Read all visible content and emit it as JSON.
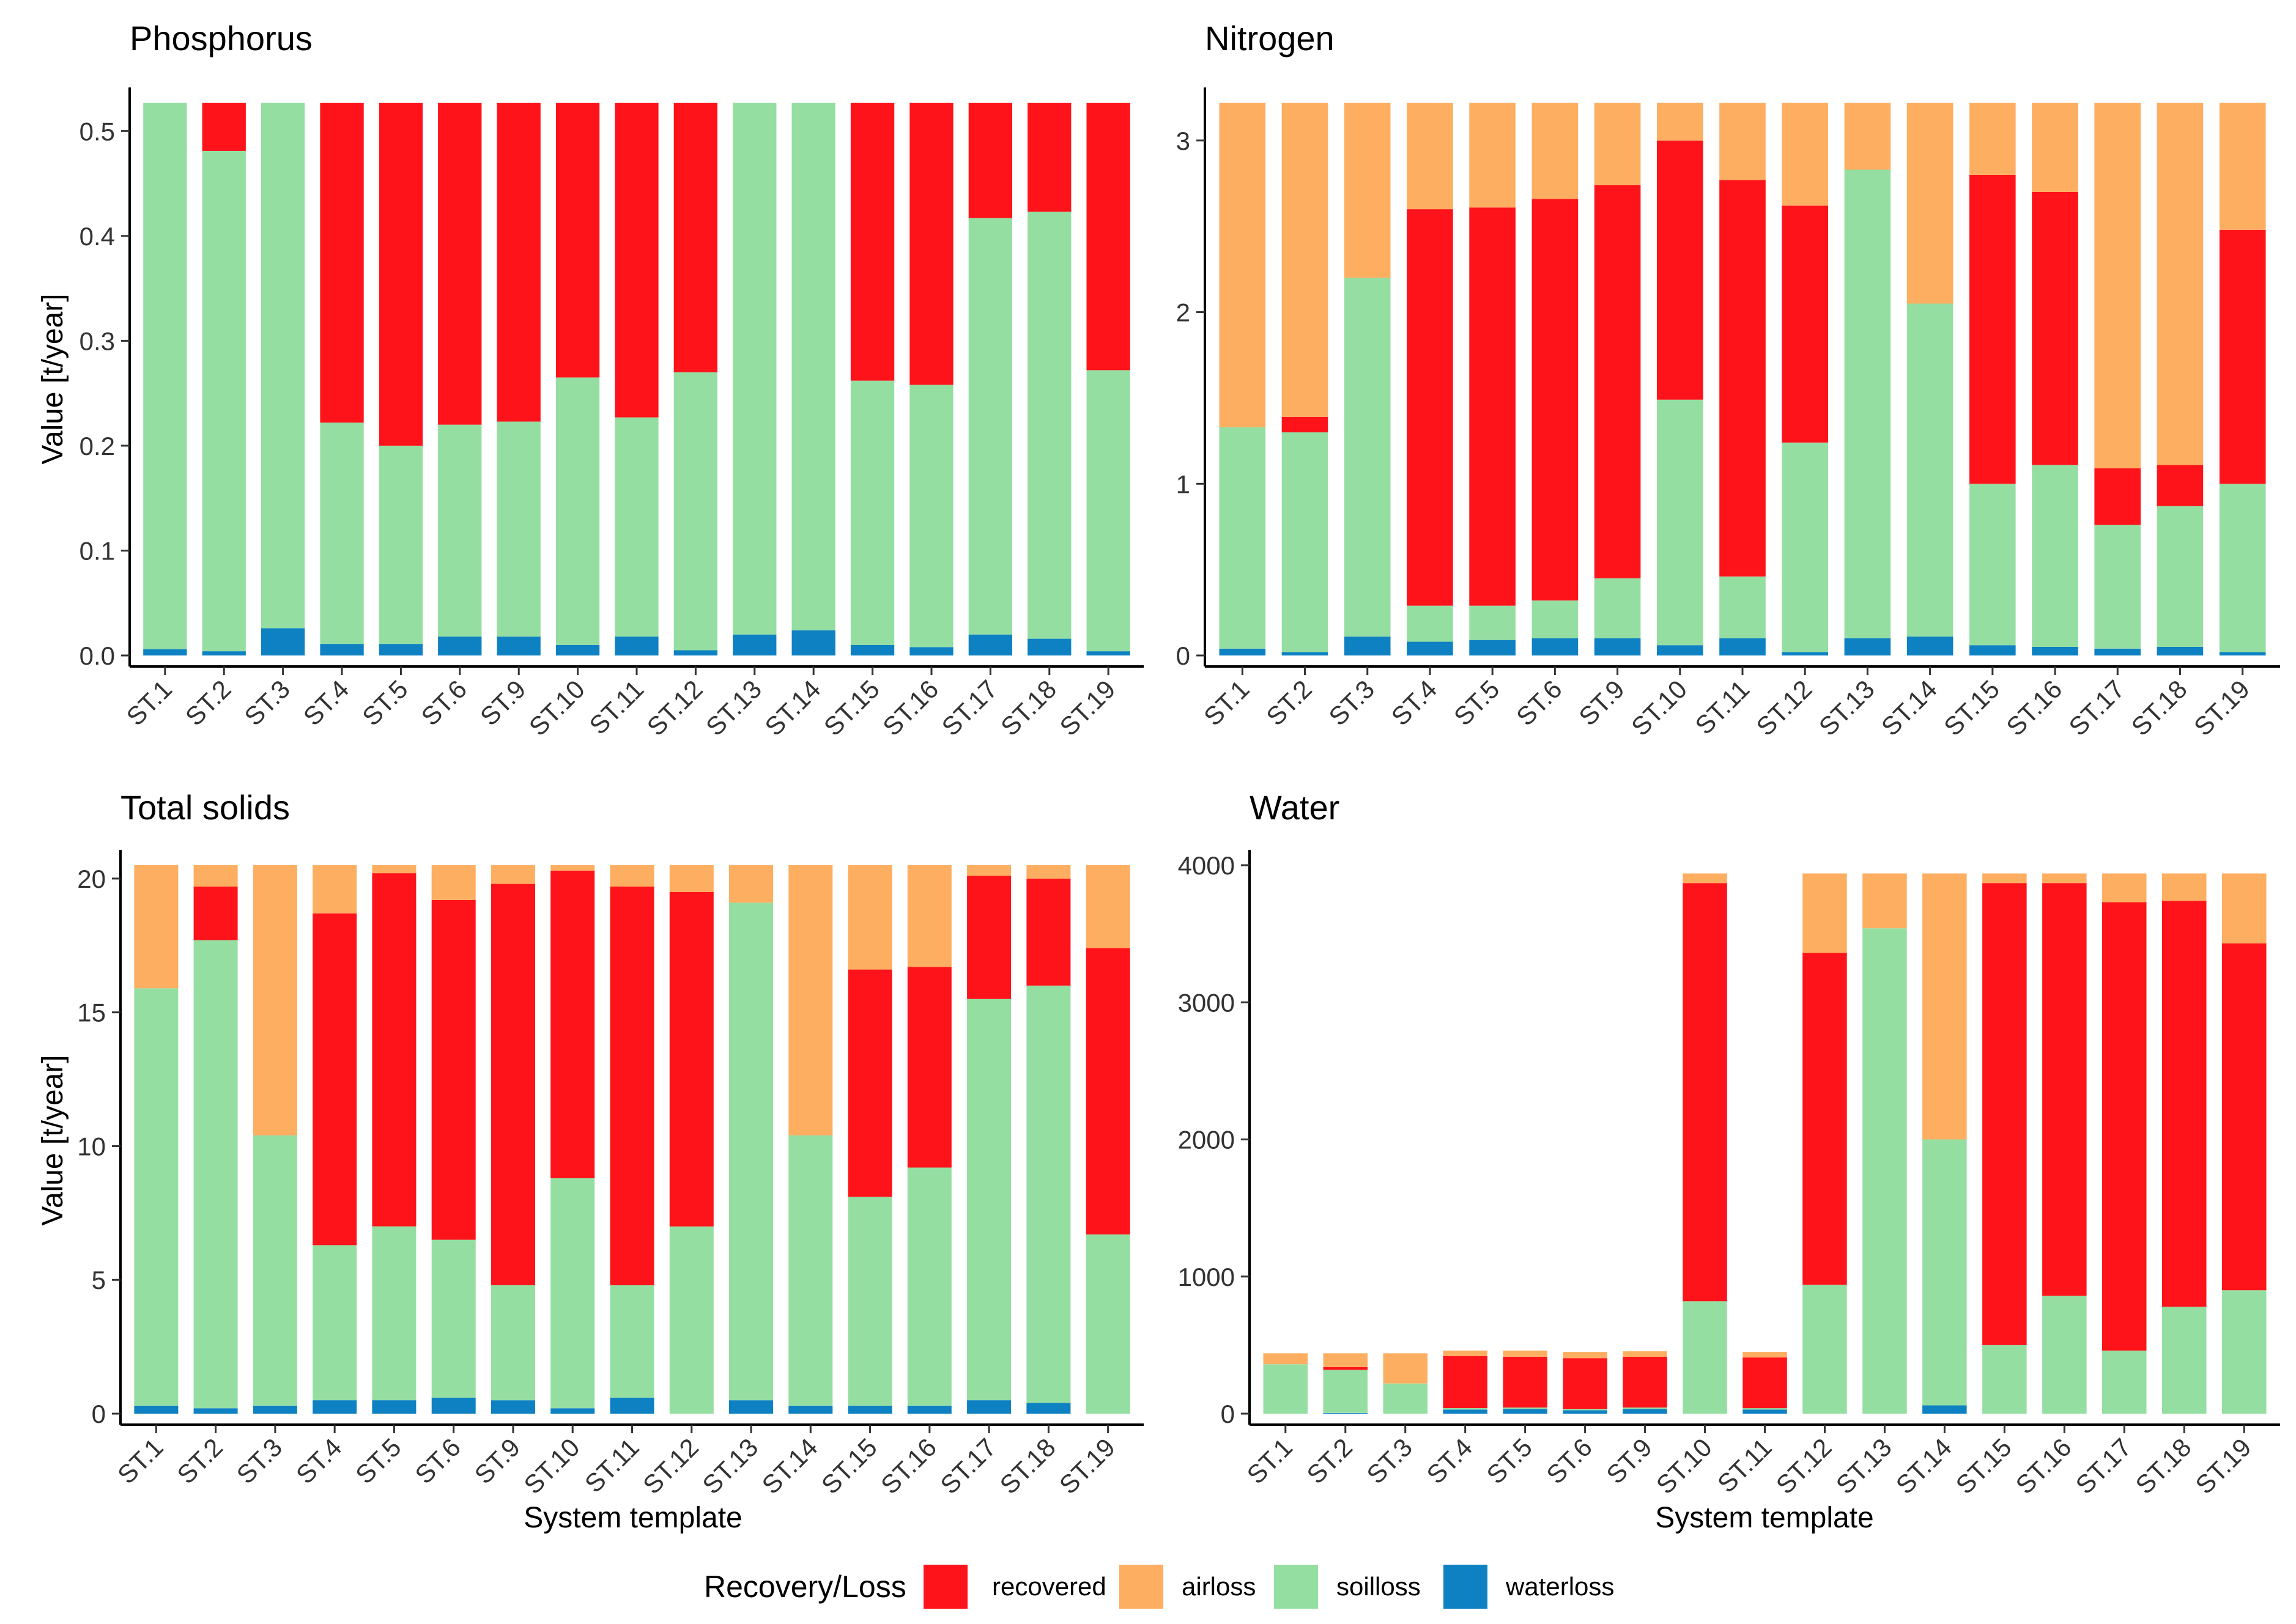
{
  "legend": {
    "title": "Recovery/Loss",
    "entries": [
      {
        "key": "recovered",
        "label": "recovered",
        "color": "#fe131a"
      },
      {
        "key": "airloss",
        "label": "airloss",
        "color": "#fdae61"
      },
      {
        "key": "soilloss",
        "label": "soilloss",
        "color": "#95dea2"
      },
      {
        "key": "waterloss",
        "label": "waterloss",
        "color": "#0e81c2"
      }
    ]
  },
  "chart_data": [
    {
      "type": "bar",
      "stacked": true,
      "title": "Phosphorus",
      "xlabel": "",
      "ylabel": "Value [t/year]",
      "ylim": [
        0,
        0.527
      ],
      "yticks": [
        0.0,
        0.1,
        0.2,
        0.3,
        0.4,
        0.5
      ],
      "ytick_labels": [
        "0.0",
        "0.1",
        "0.2",
        "0.3",
        "0.4",
        "0.5"
      ],
      "categories": [
        "ST.1",
        "ST.2",
        "ST.3",
        "ST.4",
        "ST.5",
        "ST.6",
        "ST.9",
        "ST.10",
        "ST.11",
        "ST.12",
        "ST.13",
        "ST.14",
        "ST.15",
        "ST.16",
        "ST.17",
        "ST.18",
        "ST.19"
      ],
      "series": [
        {
          "name": "waterloss",
          "values": [
            0.006,
            0.004,
            0.026,
            0.011,
            0.011,
            0.018,
            0.018,
            0.01,
            0.018,
            0.005,
            0.02,
            0.024,
            0.01,
            0.008,
            0.02,
            0.016,
            0.004
          ]
        },
        {
          "name": "soilloss",
          "values": [
            0.521,
            0.477,
            0.501,
            0.211,
            0.189,
            0.202,
            0.205,
            0.255,
            0.209,
            0.265,
            0.507,
            0.503,
            0.252,
            0.25,
            0.397,
            0.407,
            0.268
          ]
        },
        {
          "name": "recovered",
          "values": [
            0,
            0.046,
            0,
            0.305,
            0.327,
            0.307,
            0.304,
            0.262,
            0.3,
            0.257,
            0,
            0,
            0.265,
            0.269,
            0.11,
            0.104,
            0.255
          ]
        },
        {
          "name": "airloss",
          "values": [
            0,
            0,
            0,
            0,
            0,
            0,
            0,
            0,
            0,
            0,
            0,
            0,
            0,
            0,
            0,
            0,
            0
          ]
        }
      ]
    },
    {
      "type": "bar",
      "stacked": true,
      "title": "Nitrogen",
      "xlabel": "",
      "ylabel": "",
      "ylim": [
        0,
        3.22
      ],
      "yticks": [
        0,
        1,
        2,
        3
      ],
      "ytick_labels": [
        "0",
        "1",
        "2",
        "3"
      ],
      "categories": [
        "ST.1",
        "ST.2",
        "ST.3",
        "ST.4",
        "ST.5",
        "ST.6",
        "ST.9",
        "ST.10",
        "ST.11",
        "ST.12",
        "ST.13",
        "ST.14",
        "ST.15",
        "ST.16",
        "ST.17",
        "ST.18",
        "ST.19"
      ],
      "series": [
        {
          "name": "waterloss",
          "values": [
            0.04,
            0.02,
            0.11,
            0.08,
            0.09,
            0.1,
            0.1,
            0.06,
            0.1,
            0.02,
            0.1,
            0.11,
            0.06,
            0.05,
            0.04,
            0.05,
            0.02
          ]
        },
        {
          "name": "soilloss",
          "values": [
            1.29,
            1.28,
            2.09,
            0.21,
            0.2,
            0.22,
            0.35,
            1.43,
            0.36,
            1.22,
            2.73,
            1.94,
            0.94,
            1.06,
            0.72,
            0.82,
            0.98
          ]
        },
        {
          "name": "recovered",
          "values": [
            0,
            0.09,
            0,
            2.31,
            2.32,
            2.34,
            2.29,
            1.51,
            2.31,
            1.38,
            0,
            0,
            1.8,
            1.59,
            0.33,
            0.24,
            1.48
          ]
        },
        {
          "name": "airloss",
          "values": [
            1.89,
            1.83,
            1.02,
            0.62,
            0.61,
            0.56,
            0.48,
            0.22,
            0.45,
            0.6,
            0.39,
            1.17,
            0.42,
            0.52,
            2.13,
            2.11,
            0.74
          ]
        }
      ]
    },
    {
      "type": "bar",
      "stacked": true,
      "title": "Total solids",
      "xlabel": "System template",
      "ylabel": "Value [t/year]",
      "ylim": [
        0,
        20.5
      ],
      "yticks": [
        0,
        5,
        10,
        15,
        20
      ],
      "ytick_labels": [
        "0",
        "5",
        "10",
        "15",
        "20"
      ],
      "categories": [
        "ST.1",
        "ST.2",
        "ST.3",
        "ST.4",
        "ST.5",
        "ST.6",
        "ST.9",
        "ST.10",
        "ST.11",
        "ST.12",
        "ST.13",
        "ST.14",
        "ST.15",
        "ST.16",
        "ST.17",
        "ST.18",
        "ST.19"
      ],
      "series": [
        {
          "name": "waterloss",
          "values": [
            0.3,
            0.2,
            0.3,
            0.5,
            0.5,
            0.6,
            0.5,
            0.2,
            0.6,
            0,
            0.5,
            0.3,
            0.3,
            0.3,
            0.5,
            0.4,
            0
          ]
        },
        {
          "name": "soilloss",
          "values": [
            15.6,
            17.5,
            10.1,
            5.8,
            6.5,
            5.9,
            4.3,
            8.6,
            4.2,
            7.0,
            18.6,
            10.1,
            7.8,
            8.9,
            15.0,
            15.6,
            6.7
          ]
        },
        {
          "name": "recovered",
          "values": [
            0,
            2.0,
            0,
            12.4,
            13.2,
            12.7,
            15.0,
            11.5,
            14.9,
            12.5,
            0,
            0,
            8.5,
            7.5,
            4.6,
            4.0,
            10.7
          ]
        },
        {
          "name": "airloss",
          "values": [
            4.6,
            0.8,
            10.1,
            1.8,
            0.3,
            1.3,
            0.7,
            0.2,
            0.8,
            1.0,
            1.4,
            10.1,
            3.9,
            3.8,
            0.4,
            0.5,
            3.1
          ]
        }
      ]
    },
    {
      "type": "bar",
      "stacked": true,
      "title": "Water",
      "xlabel": "System template",
      "ylabel": "",
      "ylim": [
        0,
        4000
      ],
      "yticks": [
        0,
        1000,
        2000,
        3000,
        4000
      ],
      "ytick_labels": [
        "0",
        "1000",
        "2000",
        "3000",
        "4000"
      ],
      "categories": [
        "ST.1",
        "ST.2",
        "ST.3",
        "ST.4",
        "ST.5",
        "ST.6",
        "ST.9",
        "ST.10",
        "ST.11",
        "ST.12",
        "ST.13",
        "ST.14",
        "ST.15",
        "ST.16",
        "ST.17",
        "ST.18",
        "ST.19"
      ],
      "series": [
        {
          "name": "waterloss",
          "values": [
            0,
            5,
            0,
            30,
            35,
            25,
            35,
            0,
            30,
            0,
            0,
            60,
            0,
            0,
            0,
            0,
            0
          ]
        },
        {
          "name": "soilloss",
          "values": [
            360,
            315,
            220,
            10,
            10,
            10,
            10,
            820,
            10,
            940,
            3540,
            1940,
            500,
            860,
            460,
            780,
            900
          ]
        },
        {
          "name": "recovered",
          "values": [
            0,
            20,
            0,
            380,
            370,
            370,
            370,
            3050,
            370,
            2420,
            0,
            0,
            3370,
            3010,
            3270,
            2960,
            2530
          ]
        },
        {
          "name": "airloss",
          "values": [
            80,
            100,
            220,
            40,
            45,
            45,
            40,
            70,
            40,
            580,
            400,
            1940,
            70,
            70,
            210,
            200,
            510
          ]
        }
      ]
    }
  ]
}
